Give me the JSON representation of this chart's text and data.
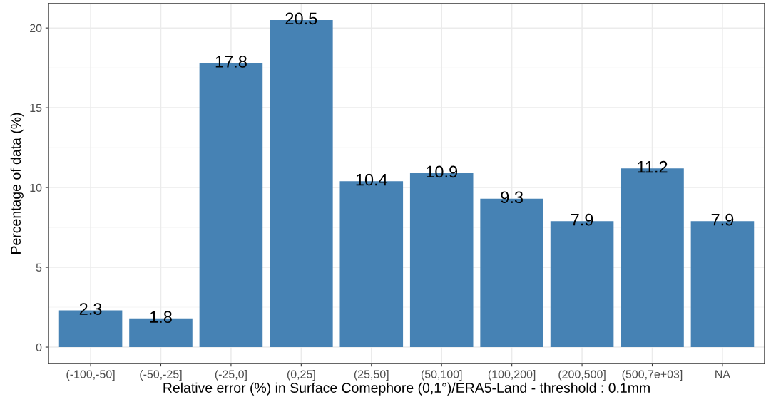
{
  "chart_data": {
    "type": "bar",
    "xlabel": "Relative error (%) in Surface Comephore (0,1°)/ERA5-Land - threshold : 0.1mm",
    "ylabel": "Percentage of data (%)",
    "categories": [
      "(-100,-50]",
      "(-50,-25]",
      "(-25,0]",
      "(0,25]",
      "(25,50]",
      "(50,100]",
      "(100,200]",
      "(200,500]",
      "(500,7e+03]",
      "NA"
    ],
    "values": [
      2.3,
      1.8,
      17.8,
      20.5,
      10.4,
      10.9,
      9.3,
      7.9,
      11.2,
      7.9
    ],
    "color": "#4682b4",
    "ylim": [
      -1.025,
      21.525
    ],
    "yticks": [
      0,
      5,
      10,
      15,
      20
    ],
    "grid": true,
    "data_labels": true
  }
}
